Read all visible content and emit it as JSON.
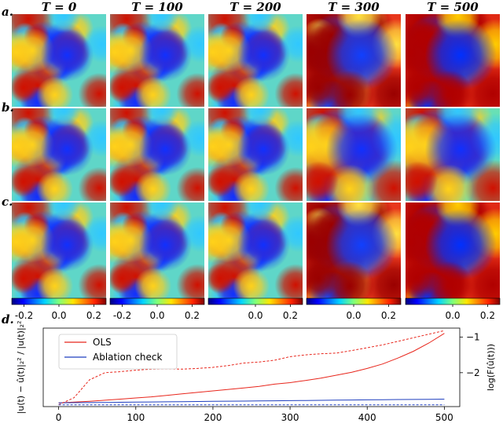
{
  "figure": {
    "column_titles": [
      "T = 0",
      "T = 100",
      "T = 200",
      "T = 300",
      "T = 500"
    ],
    "row_labels": [
      "a.",
      "b.",
      "c."
    ],
    "bottom_label": "d."
  },
  "colorbars": [
    {
      "ticks": [
        "-0.2",
        "0.0",
        "0.2"
      ],
      "tick_values": [
        -0.2,
        0.0,
        0.2
      ],
      "range": [
        -0.27,
        0.27
      ]
    },
    {
      "ticks": [
        "-0.2",
        "0.0",
        "0.2"
      ],
      "tick_values": [
        -0.2,
        0.0,
        0.2
      ],
      "range": [
        -0.27,
        0.27
      ]
    },
    {
      "ticks": [
        "0.0",
        "0.2"
      ],
      "tick_values": [
        0.0,
        0.2
      ],
      "range": [
        -0.27,
        0.27
      ]
    },
    {
      "ticks": [
        "0.0",
        "0.2"
      ],
      "tick_values": [
        0.0,
        0.2
      ],
      "range": [
        -0.27,
        0.27
      ]
    },
    {
      "ticks": [
        "0.0",
        "0.2"
      ],
      "tick_values": [
        0.0,
        0.2
      ],
      "range": [
        -0.27,
        0.27
      ]
    }
  ],
  "chart_data": {
    "type": "line",
    "x": [
      0,
      20,
      40,
      60,
      80,
      100,
      120,
      140,
      160,
      180,
      200,
      220,
      240,
      260,
      280,
      300,
      320,
      340,
      360,
      380,
      400,
      420,
      440,
      460,
      480,
      500
    ],
    "xlim": [
      -20,
      520
    ],
    "xticks": [
      0,
      100,
      200,
      300,
      400,
      500
    ],
    "xtick_labels": [
      "0",
      "100",
      "200",
      "300",
      "400",
      "500"
    ],
    "ylabel": "|u(t) − û(t)|₂² / |u(t)|₂²",
    "ylabel_right": "log(F(û(t)))",
    "y2ticks": [
      -1,
      -2
    ],
    "y2tick_labels": [
      "−1",
      "−2"
    ],
    "y2lim": [
      -2.95,
      -0.75
    ],
    "ylim": [
      -0.05,
      1.0
    ],
    "legend": {
      "position": "upper-left",
      "entries": [
        "OLS",
        "Ablation check"
      ]
    },
    "series": [
      {
        "name": "OLS",
        "color": "#e8261c",
        "style": "solid",
        "axis": "left",
        "values": [
          0.0,
          0.01,
          0.02,
          0.035,
          0.05,
          0.065,
          0.08,
          0.1,
          0.12,
          0.14,
          0.16,
          0.18,
          0.2,
          0.22,
          0.25,
          0.27,
          0.3,
          0.33,
          0.37,
          0.41,
          0.46,
          0.52,
          0.6,
          0.69,
          0.8,
          0.93
        ]
      },
      {
        "name": "Ablation check",
        "color": "#1f3fbf",
        "style": "solid",
        "axis": "left",
        "values": [
          0.0,
          0.002,
          0.004,
          0.006,
          0.008,
          0.01,
          0.012,
          0.014,
          0.016,
          0.018,
          0.02,
          0.022,
          0.024,
          0.026,
          0.028,
          0.03,
          0.032,
          0.034,
          0.036,
          0.038,
          0.04,
          0.042,
          0.044,
          0.046,
          0.048,
          0.05
        ]
      },
      {
        "color": "#e8261c",
        "style": "dashed",
        "axis": "right",
        "values": [
          -2.9,
          -2.7,
          -2.2,
          -2.0,
          -1.97,
          -1.93,
          -1.9,
          -1.89,
          -1.9,
          -1.88,
          -1.85,
          -1.8,
          -1.73,
          -1.7,
          -1.65,
          -1.55,
          -1.5,
          -1.47,
          -1.45,
          -1.38,
          -1.3,
          -1.22,
          -1.12,
          -1.02,
          -0.92,
          -0.82
        ]
      },
      {
        "color": "#1f3fbf",
        "style": "dashed",
        "axis": "right",
        "values": [
          -2.9,
          -2.9,
          -2.9,
          -2.9,
          -2.9,
          -2.9,
          -2.9,
          -2.9,
          -2.9,
          -2.9,
          -2.9,
          -2.9,
          -2.9,
          -2.9,
          -2.9,
          -2.9,
          -2.9,
          -2.9,
          -2.9,
          -2.9,
          -2.9,
          -2.9,
          -2.9,
          -2.9,
          -2.9,
          -2.9
        ]
      }
    ]
  }
}
